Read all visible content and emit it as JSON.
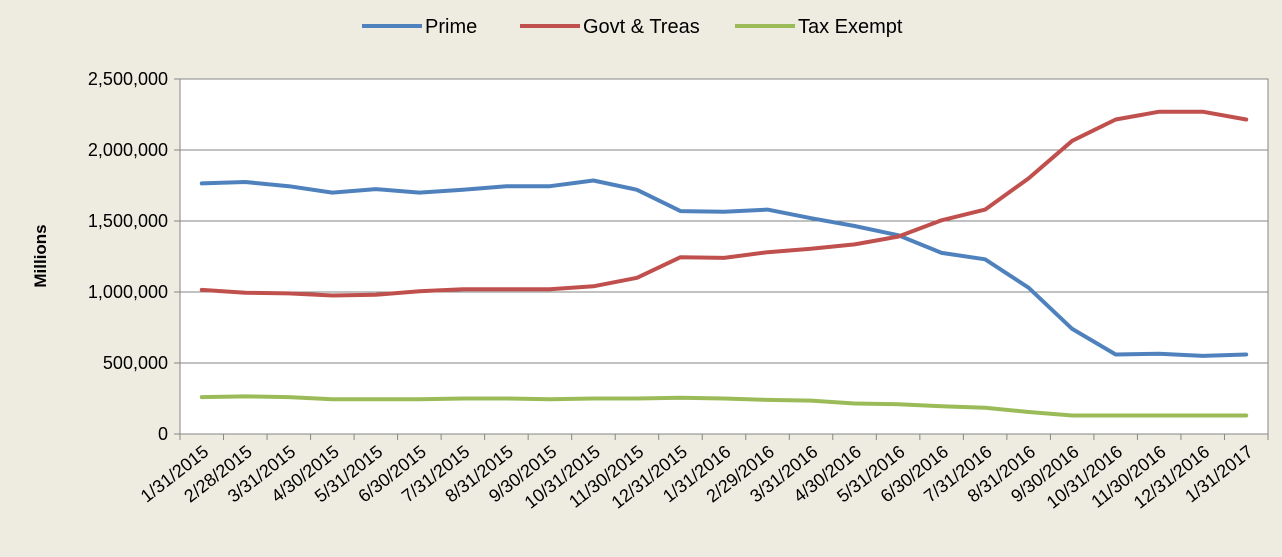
{
  "chart_data": {
    "type": "line",
    "title": "",
    "xlabel": "",
    "ylabel": "Millions",
    "ylim": [
      0,
      2500000
    ],
    "yticks": [
      0,
      500000,
      1000000,
      1500000,
      2000000,
      2500000
    ],
    "ytick_labels": [
      "0",
      "500,000",
      "1,000,000",
      "1,500,000",
      "2,000,000",
      "2,500,000"
    ],
    "grid": "horizontal",
    "legend": "top-center",
    "categories": [
      "1/31/2015",
      "2/28/2015",
      "3/31/2015",
      "4/30/2015",
      "5/31/2015",
      "6/30/2015",
      "7/31/2015",
      "8/31/2015",
      "9/30/2015",
      "10/31/2015",
      "11/30/2015",
      "12/31/2015",
      "1/31/2016",
      "2/29/2016",
      "3/31/2016",
      "4/30/2016",
      "5/31/2016",
      "6/30/2016",
      "7/31/2016",
      "8/31/2016",
      "9/30/2016",
      "10/31/2016",
      "11/30/2016",
      "12/31/2016",
      "1/31/2017"
    ],
    "series": [
      {
        "name": "Prime",
        "color": "#4F81BD",
        "values": [
          1765000,
          1775000,
          1745000,
          1700000,
          1725000,
          1700000,
          1720000,
          1745000,
          1745000,
          1785000,
          1720000,
          1570000,
          1565000,
          1580000,
          1520000,
          1465000,
          1400000,
          1275000,
          1230000,
          1030000,
          740000,
          560000,
          565000,
          550000,
          560000
        ]
      },
      {
        "name": "Govt & Treas",
        "color": "#C0504D",
        "values": [
          1015000,
          995000,
          990000,
          975000,
          980000,
          1005000,
          1020000,
          1020000,
          1020000,
          1040000,
          1100000,
          1245000,
          1240000,
          1280000,
          1305000,
          1335000,
          1390000,
          1505000,
          1580000,
          1800000,
          2065000,
          2215000,
          2270000,
          2270000,
          2215000
        ]
      },
      {
        "name": "Tax Exempt",
        "color": "#9BBB59",
        "values": [
          260000,
          265000,
          260000,
          245000,
          245000,
          245000,
          250000,
          250000,
          245000,
          250000,
          250000,
          255000,
          250000,
          240000,
          235000,
          215000,
          210000,
          195000,
          185000,
          155000,
          130000,
          130000,
          130000,
          130000,
          130000
        ]
      }
    ]
  }
}
